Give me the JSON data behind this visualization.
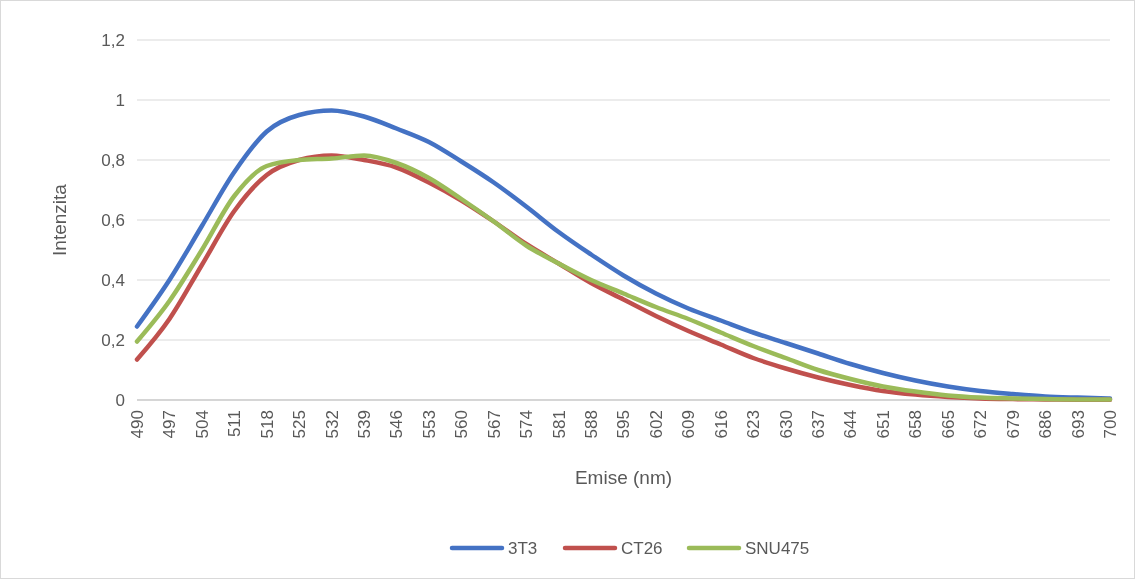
{
  "chart_data": {
    "type": "line",
    "xlabel": "Emise (nm)",
    "ylabel": "Intenzita",
    "x": [
      490,
      497,
      504,
      511,
      518,
      525,
      532,
      539,
      546,
      553,
      560,
      567,
      574,
      581,
      588,
      595,
      602,
      609,
      616,
      623,
      630,
      637,
      644,
      651,
      658,
      665,
      672,
      679,
      686,
      693,
      700
    ],
    "series": [
      {
        "name": "3T3",
        "color": "#4472c4",
        "values": [
          0.245,
          0.4,
          0.58,
          0.76,
          0.895,
          0.95,
          0.965,
          0.945,
          0.905,
          0.86,
          0.795,
          0.725,
          0.645,
          0.56,
          0.485,
          0.415,
          0.355,
          0.305,
          0.265,
          0.225,
          0.19,
          0.155,
          0.12,
          0.09,
          0.065,
          0.045,
          0.03,
          0.02,
          0.012,
          0.008,
          0.005
        ]
      },
      {
        "name": "CT26",
        "color": "#c0504d",
        "values": [
          0.135,
          0.27,
          0.45,
          0.63,
          0.75,
          0.8,
          0.815,
          0.8,
          0.775,
          0.725,
          0.665,
          0.595,
          0.52,
          0.455,
          0.39,
          0.335,
          0.28,
          0.23,
          0.185,
          0.14,
          0.105,
          0.075,
          0.05,
          0.03,
          0.018,
          0.01,
          0.005,
          0.003,
          0.002,
          0.001,
          0.001
        ]
      },
      {
        "name": "SNU475",
        "color": "#9bbb59",
        "values": [
          0.195,
          0.33,
          0.5,
          0.68,
          0.78,
          0.8,
          0.805,
          0.815,
          0.79,
          0.74,
          0.67,
          0.595,
          0.515,
          0.455,
          0.4,
          0.355,
          0.31,
          0.27,
          0.225,
          0.18,
          0.14,
          0.1,
          0.07,
          0.045,
          0.028,
          0.015,
          0.008,
          0.005,
          0.003,
          0.002,
          0.002
        ]
      }
    ],
    "xlim": [
      490,
      700
    ],
    "xticks": [
      490,
      497,
      504,
      511,
      518,
      525,
      532,
      539,
      546,
      553,
      560,
      567,
      574,
      581,
      588,
      595,
      602,
      609,
      616,
      623,
      630,
      637,
      644,
      651,
      658,
      665,
      672,
      679,
      686,
      693,
      700
    ],
    "ylim": [
      0,
      1.2
    ],
    "yticks": [
      0,
      {
        "value": 0.2,
        "label": "0,2"
      },
      {
        "value": 0.4,
        "label": "0,4"
      },
      {
        "value": 0.6,
        "label": "0,6"
      },
      {
        "value": 0.8,
        "label": "0,8"
      },
      1,
      {
        "value": 1.2,
        "label": "1,2"
      }
    ],
    "grid": "y",
    "legend": "bottom",
    "marker": "none",
    "line_style": "solid"
  }
}
